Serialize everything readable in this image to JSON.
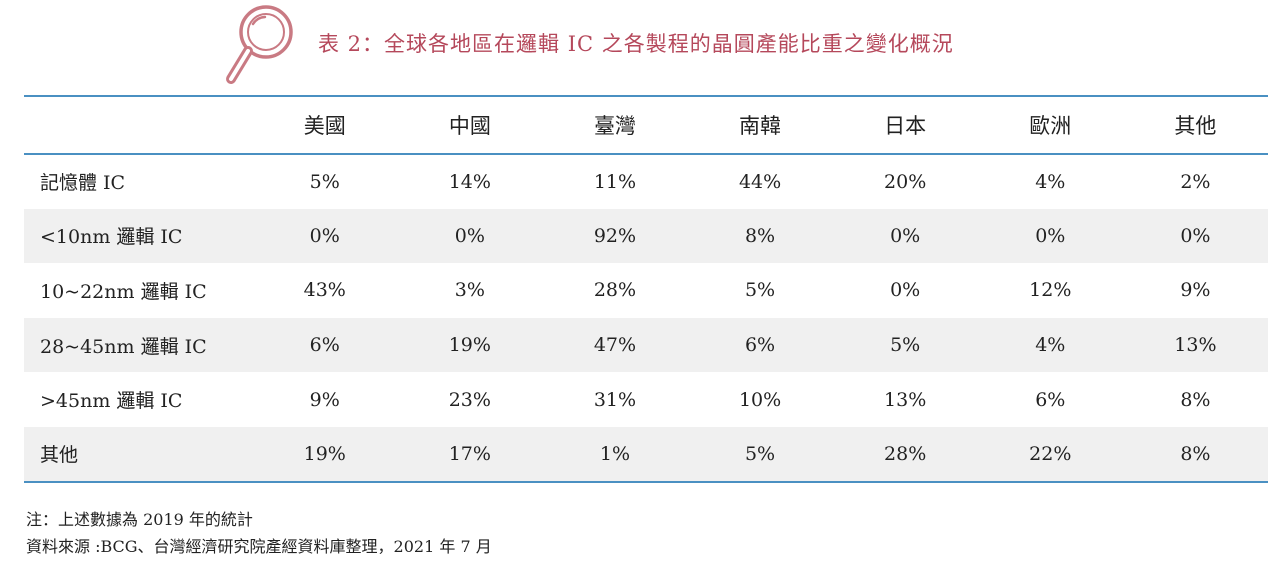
{
  "title": "表 2：全球各地區在邏輯 IC 之各製程的晶圓產能比重之變化概況",
  "colors": {
    "title_text": "#b5485b",
    "icon": "#c97a83",
    "rule": "#4a90c2",
    "stripe": "#f0f0f0"
  },
  "icon": "magnifier-icon",
  "table": {
    "headers": [
      "",
      "美國",
      "中國",
      "臺灣",
      "南韓",
      "日本",
      "歐洲",
      "其他"
    ],
    "rows": [
      {
        "label": "記憶體 IC",
        "values": [
          "5%",
          "14%",
          "11%",
          "44%",
          "20%",
          "4%",
          "2%"
        ]
      },
      {
        "label": "<10nm 邏輯 IC",
        "values": [
          "0%",
          "0%",
          "92%",
          "8%",
          "0%",
          "0%",
          "0%"
        ]
      },
      {
        "label": "10~22nm 邏輯 IC",
        "values": [
          "43%",
          "3%",
          "28%",
          "5%",
          "0%",
          "12%",
          "9%"
        ]
      },
      {
        "label": "28~45nm 邏輯 IC",
        "values": [
          "6%",
          "19%",
          "47%",
          "6%",
          "5%",
          "4%",
          "13%"
        ]
      },
      {
        "label": ">45nm 邏輯 IC",
        "values": [
          "9%",
          "23%",
          "31%",
          "10%",
          "13%",
          "6%",
          "8%"
        ]
      },
      {
        "label": "其他",
        "values": [
          "19%",
          "17%",
          "1%",
          "5%",
          "28%",
          "22%",
          "8%"
        ]
      }
    ]
  },
  "notes": [
    "注：上述數據為 2019 年的統計",
    "資料來源 :BCG、台灣經濟研究院產經資料庫整理，2021 年 7 月"
  ]
}
